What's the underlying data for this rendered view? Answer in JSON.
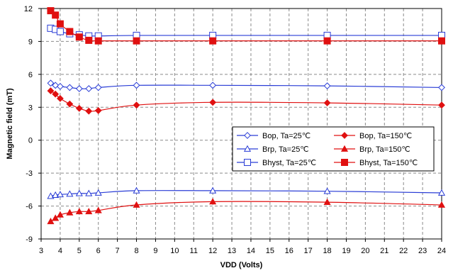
{
  "chart_data": {
    "type": "line",
    "title": "",
    "xlabel": "VDD (Volts)",
    "ylabel": "Magnetic field (mT)",
    "xlim": [
      3,
      24
    ],
    "ylim": [
      -9,
      12
    ],
    "xticks": [
      "3",
      "4",
      "5",
      "6",
      "7",
      "8",
      "9",
      "10",
      "11",
      "12",
      "13",
      "14",
      "15",
      "16",
      "17",
      "18",
      "19",
      "20",
      "21",
      "22",
      "23",
      "24"
    ],
    "yticks": [
      "12",
      "9",
      "6",
      "3",
      "0",
      "-3",
      "-6",
      "-9"
    ],
    "grid": true,
    "legend_position": "right",
    "x": [
      3.5,
      3.75,
      4,
      4.5,
      5,
      5.5,
      6,
      8,
      12,
      18,
      24
    ],
    "series": [
      {
        "name": "Bop, Ta=25℃",
        "color": "#2a3dd6",
        "marker": "diamond-open",
        "values": [
          5.2,
          5.0,
          4.9,
          4.8,
          4.7,
          4.7,
          4.8,
          5.0,
          5.0,
          4.95,
          4.8
        ]
      },
      {
        "name": "Bop, Ta=150℃",
        "color": "#e01010",
        "marker": "diamond-filled",
        "values": [
          4.5,
          4.2,
          3.8,
          3.3,
          2.9,
          2.65,
          2.7,
          3.2,
          3.45,
          3.4,
          3.2
        ]
      },
      {
        "name": "Brp, Ta=25℃",
        "color": "#2a3dd6",
        "marker": "triangle-open",
        "values": [
          -5.1,
          -5.0,
          -4.95,
          -4.9,
          -4.85,
          -4.85,
          -4.8,
          -4.6,
          -4.6,
          -4.65,
          -4.8
        ]
      },
      {
        "name": "Brp, Ta=150℃",
        "color": "#e01010",
        "marker": "triangle-filled",
        "values": [
          -7.4,
          -7.1,
          -6.8,
          -6.6,
          -6.5,
          -6.5,
          -6.4,
          -5.9,
          -5.6,
          -5.65,
          -5.9
        ]
      },
      {
        "name": "Bhyst, Ta=25℃",
        "color": "#2a3dd6",
        "marker": "square-open",
        "values": [
          10.2,
          10.1,
          9.9,
          9.7,
          9.6,
          9.5,
          9.5,
          9.55,
          9.55,
          9.55,
          9.55
        ]
      },
      {
        "name": "Bhyst, Ta=150℃",
        "color": "#e01010",
        "marker": "square-filled",
        "values": [
          11.8,
          11.4,
          10.6,
          9.9,
          9.4,
          9.1,
          9.05,
          9.05,
          9.05,
          9.05,
          9.05
        ]
      }
    ]
  }
}
